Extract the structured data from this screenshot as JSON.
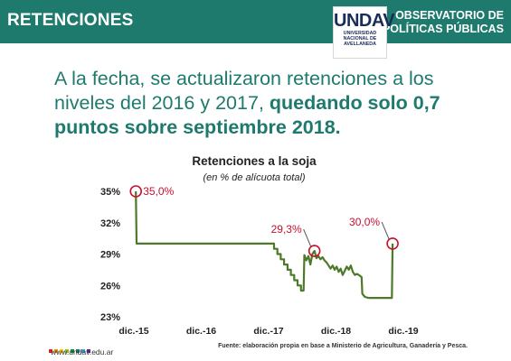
{
  "header": {
    "section_title": "RETENCIONES",
    "logo_word": "UNDAV",
    "logo_lines": [
      "UNIVERSIDAD",
      "NACIONAL DE",
      "AVELLANEDA"
    ],
    "observatory_line1": "OBSERVATORIO DE",
    "observatory_line2": "POLÍTICAS PÚBLICAS"
  },
  "headline": {
    "normal": "A la fecha, se actualizaron retenciones a los niveles del 2016 y 2017, ",
    "bold": "quedando solo 0,7 puntos sobre septiembre 2018."
  },
  "footer": {
    "url": "www.undav.edu.ar",
    "source": "Fuente: elaboración propia en base a Ministerio de Agricultura, Ganadería y Pesca.",
    "dot_colors": [
      "#e31e24",
      "#f39200",
      "#ffcc00",
      "#95c11f",
      "#009640",
      "#1d7a6d",
      "#36a9e1",
      "#662483"
    ]
  },
  "chart_data": {
    "type": "line",
    "title": "Retenciones a la soja",
    "subtitle": "(en % de alícuota total)",
    "x_ticks": [
      {
        "label": "dic.-15",
        "x": 2015.92
      },
      {
        "label": "dic.-16",
        "x": 2016.92
      },
      {
        "label": "dic.-17",
        "x": 2017.92
      },
      {
        "label": "dic.-18",
        "x": 2018.92
      },
      {
        "label": "dic.-19",
        "x": 2019.92
      }
    ],
    "y_ticks": [
      {
        "label": "35%",
        "value": 35
      },
      {
        "label": "32%",
        "value": 32
      },
      {
        "label": "29%",
        "value": 29
      },
      {
        "label": "26%",
        "value": 26
      },
      {
        "label": "23%",
        "value": 23
      }
    ],
    "xlim": [
      2015.92,
      2019.92
    ],
    "ylim": [
      23,
      35
    ],
    "line_color": "#4d7a2a",
    "highlight_color": "#c8102e",
    "series": [
      {
        "points": [
          [
            2015.95,
            35.0
          ],
          [
            2015.96,
            30.0
          ],
          [
            2017.96,
            30.0
          ],
          [
            2018.0,
            30.0
          ],
          [
            2018.0,
            29.5
          ],
          [
            2018.05,
            29.5
          ],
          [
            2018.05,
            29.0
          ],
          [
            2018.1,
            29.0
          ],
          [
            2018.1,
            28.5
          ],
          [
            2018.15,
            28.5
          ],
          [
            2018.15,
            28.0
          ],
          [
            2018.2,
            28.0
          ],
          [
            2018.2,
            27.5
          ],
          [
            2018.25,
            27.5
          ],
          [
            2018.25,
            27.0
          ],
          [
            2018.3,
            27.0
          ],
          [
            2018.3,
            26.5
          ],
          [
            2018.35,
            26.5
          ],
          [
            2018.35,
            26.0
          ],
          [
            2018.4,
            26.0
          ],
          [
            2018.4,
            25.5
          ],
          [
            2018.44,
            25.5
          ],
          [
            2018.45,
            28.9
          ],
          [
            2018.48,
            28.4
          ],
          [
            2018.51,
            28.8
          ],
          [
            2018.54,
            28.0
          ],
          [
            2018.57,
            29.0
          ],
          [
            2018.6,
            29.3
          ],
          [
            2018.63,
            28.6
          ],
          [
            2018.66,
            28.8
          ],
          [
            2018.69,
            28.5
          ],
          [
            2018.72,
            28.7
          ],
          [
            2018.75,
            28.4
          ],
          [
            2018.78,
            28.2
          ],
          [
            2018.81,
            27.9
          ],
          [
            2018.84,
            27.6
          ],
          [
            2018.87,
            27.9
          ],
          [
            2018.9,
            27.5
          ],
          [
            2018.93,
            27.8
          ],
          [
            2018.96,
            27.3
          ],
          [
            2018.99,
            27.6
          ],
          [
            2019.02,
            27.0
          ],
          [
            2019.05,
            27.4
          ],
          [
            2019.08,
            27.8
          ],
          [
            2019.11,
            27.5
          ],
          [
            2019.14,
            27.9
          ],
          [
            2019.17,
            27.3
          ],
          [
            2019.2,
            27.0
          ],
          [
            2019.23,
            27.1
          ],
          [
            2019.26,
            27.0
          ],
          [
            2019.3,
            26.8
          ],
          [
            2019.31,
            25.2
          ],
          [
            2019.35,
            24.9
          ],
          [
            2019.4,
            24.8
          ],
          [
            2019.5,
            24.8
          ],
          [
            2019.6,
            24.8
          ],
          [
            2019.7,
            24.8
          ],
          [
            2019.75,
            24.8
          ],
          [
            2019.76,
            30.0
          ]
        ]
      }
    ],
    "annotations": [
      {
        "label": "35,0%",
        "x": 2015.95,
        "y": 35.0,
        "position": "right"
      },
      {
        "label": "29,3%",
        "x": 2018.6,
        "y": 29.3,
        "position": "top-left"
      },
      {
        "label": "30,0%",
        "x": 2019.76,
        "y": 30.0,
        "position": "top-left"
      }
    ]
  }
}
